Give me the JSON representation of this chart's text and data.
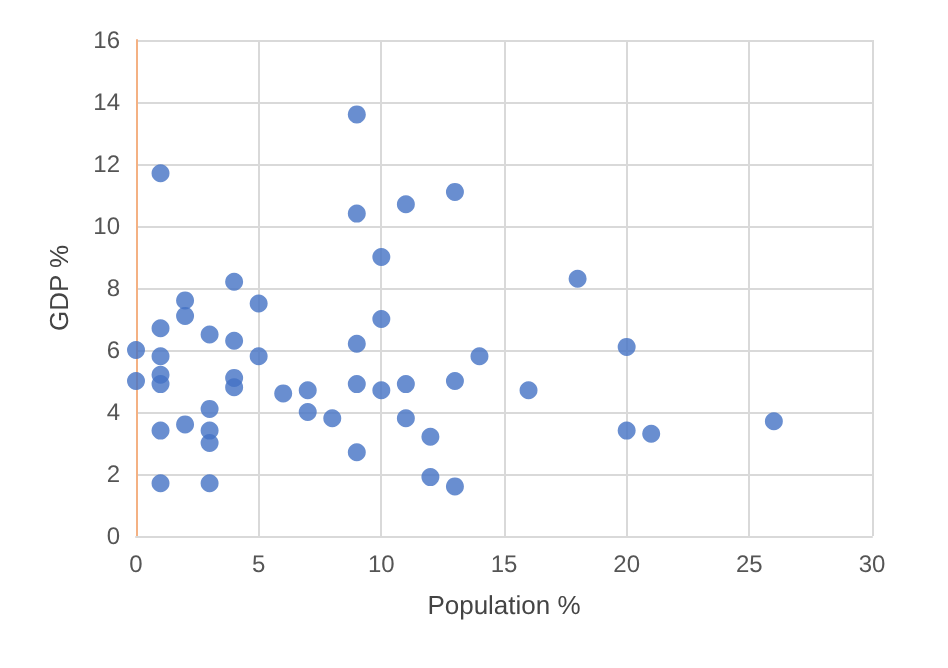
{
  "chart_data": {
    "type": "scatter",
    "xlabel": "Population %",
    "ylabel": "GDP %",
    "x": [
      0,
      0,
      1,
      1,
      1,
      1,
      1,
      1,
      1,
      2,
      2,
      2,
      3,
      3,
      3,
      3,
      3,
      4,
      4,
      4,
      4,
      5,
      5,
      6,
      7,
      7,
      8,
      9,
      9,
      9,
      9,
      9,
      10,
      10,
      10,
      11,
      11,
      11,
      12,
      12,
      13,
      13,
      13,
      14,
      16,
      18,
      20,
      20,
      21,
      26
    ],
    "values": [
      6,
      5,
      11.7,
      6.7,
      5.8,
      5.2,
      4.9,
      3.4,
      1.7,
      7.6,
      7.1,
      3.6,
      6.5,
      4.1,
      3.4,
      3.0,
      1.7,
      8.2,
      6.3,
      5.1,
      4.8,
      7.5,
      5.8,
      4.6,
      4.7,
      4.0,
      3.8,
      13.6,
      10.4,
      6.2,
      4.9,
      2.7,
      9.0,
      7.0,
      4.7,
      10.7,
      4.9,
      3.8,
      3.2,
      1.9,
      11.1,
      5.0,
      1.6,
      5.8,
      4.7,
      8.3,
      6.1,
      3.4,
      3.3,
      3.7
    ],
    "color": "#4472c4",
    "marker": "circle",
    "grid": true,
    "xlim": [
      0,
      30
    ],
    "xticks": [
      0,
      5,
      10,
      15,
      20,
      25,
      30
    ],
    "ylim": [
      0,
      16
    ],
    "yticks": [
      0,
      2,
      4,
      6,
      8,
      10,
      12,
      14,
      16
    ]
  }
}
